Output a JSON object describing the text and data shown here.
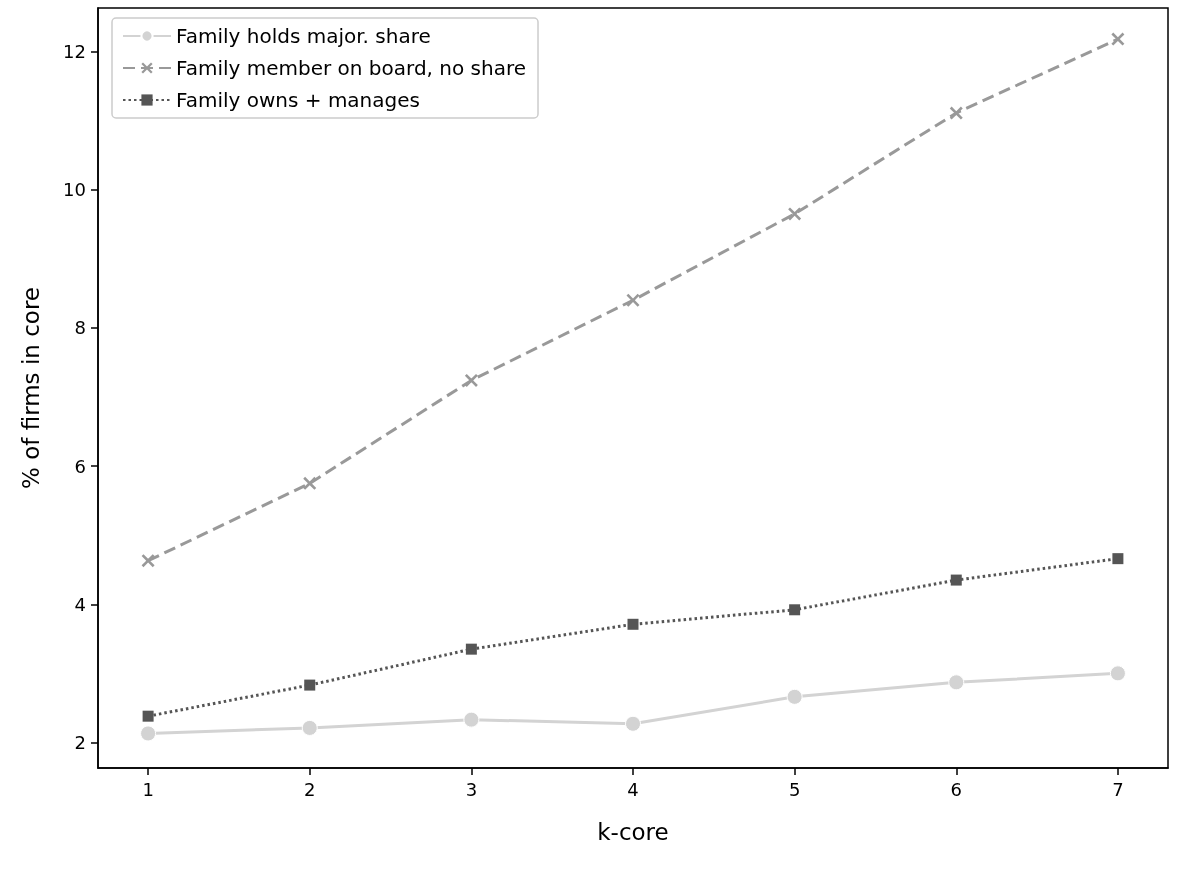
{
  "chart_data": {
    "type": "line",
    "xlabel": "k-core",
    "ylabel": "% of firms in core",
    "x": [
      1,
      2,
      3,
      4,
      5,
      6,
      7
    ],
    "xlim": [
      0.69,
      7.31
    ],
    "xticks": [
      1,
      2,
      3,
      4,
      5,
      6,
      7
    ],
    "ylim": [
      1.63,
      12.63
    ],
    "yticks": [
      2,
      4,
      6,
      8,
      10,
      12
    ],
    "grid": false,
    "legend": "top left",
    "series": [
      {
        "name": "Family holds major. share",
        "color": "#d3d3d3",
        "marker": "circle",
        "line_style": "solid",
        "values": [
          2.13,
          2.21,
          2.33,
          2.27,
          2.66,
          2.87,
          3.0
        ]
      },
      {
        "name": "Family member on board, no share",
        "color": "#999999",
        "marker": "cross",
        "line_style": "dashed",
        "values": [
          4.63,
          5.75,
          7.24,
          8.4,
          9.65,
          11.11,
          12.18
        ]
      },
      {
        "name": "Family owns + manages",
        "color": "#555555",
        "marker": "square",
        "line_style": "dotted",
        "values": [
          2.38,
          2.83,
          3.35,
          3.71,
          3.92,
          4.35,
          4.66
        ]
      }
    ]
  }
}
